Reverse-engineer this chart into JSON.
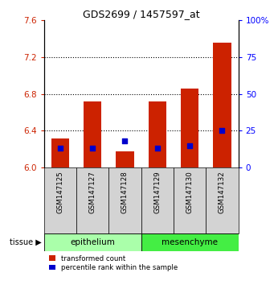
{
  "title": "GDS2699 / 1457597_at",
  "samples": [
    "GSM147125",
    "GSM147127",
    "GSM147128",
    "GSM147129",
    "GSM147130",
    "GSM147132"
  ],
  "transformed_counts": [
    6.32,
    6.72,
    6.18,
    6.72,
    6.86,
    7.35
  ],
  "percentile_ranks": [
    13,
    13,
    18,
    13,
    15,
    25
  ],
  "ylim_left": [
    6.0,
    7.6
  ],
  "ylim_right": [
    0,
    100
  ],
  "yticks_left": [
    6.0,
    6.4,
    6.8,
    7.2,
    7.6
  ],
  "yticks_right": [
    0,
    25,
    50,
    75,
    100
  ],
  "bar_color": "#cc2200",
  "percentile_color": "#0000cc",
  "tissue_labels": [
    "epithelium",
    "mesenchyme"
  ],
  "tissue_light_color": "#aaffaa",
  "tissue_dark_color": "#44ee44",
  "tissue_groups": [
    3,
    3
  ],
  "tissue_label": "tissue",
  "legend_labels": [
    "transformed count",
    "percentile rank within the sample"
  ],
  "sample_box_color": "#d3d3d3",
  "bar_width": 0.55,
  "grid_dotted_at": [
    6.4,
    6.8,
    7.2
  ]
}
